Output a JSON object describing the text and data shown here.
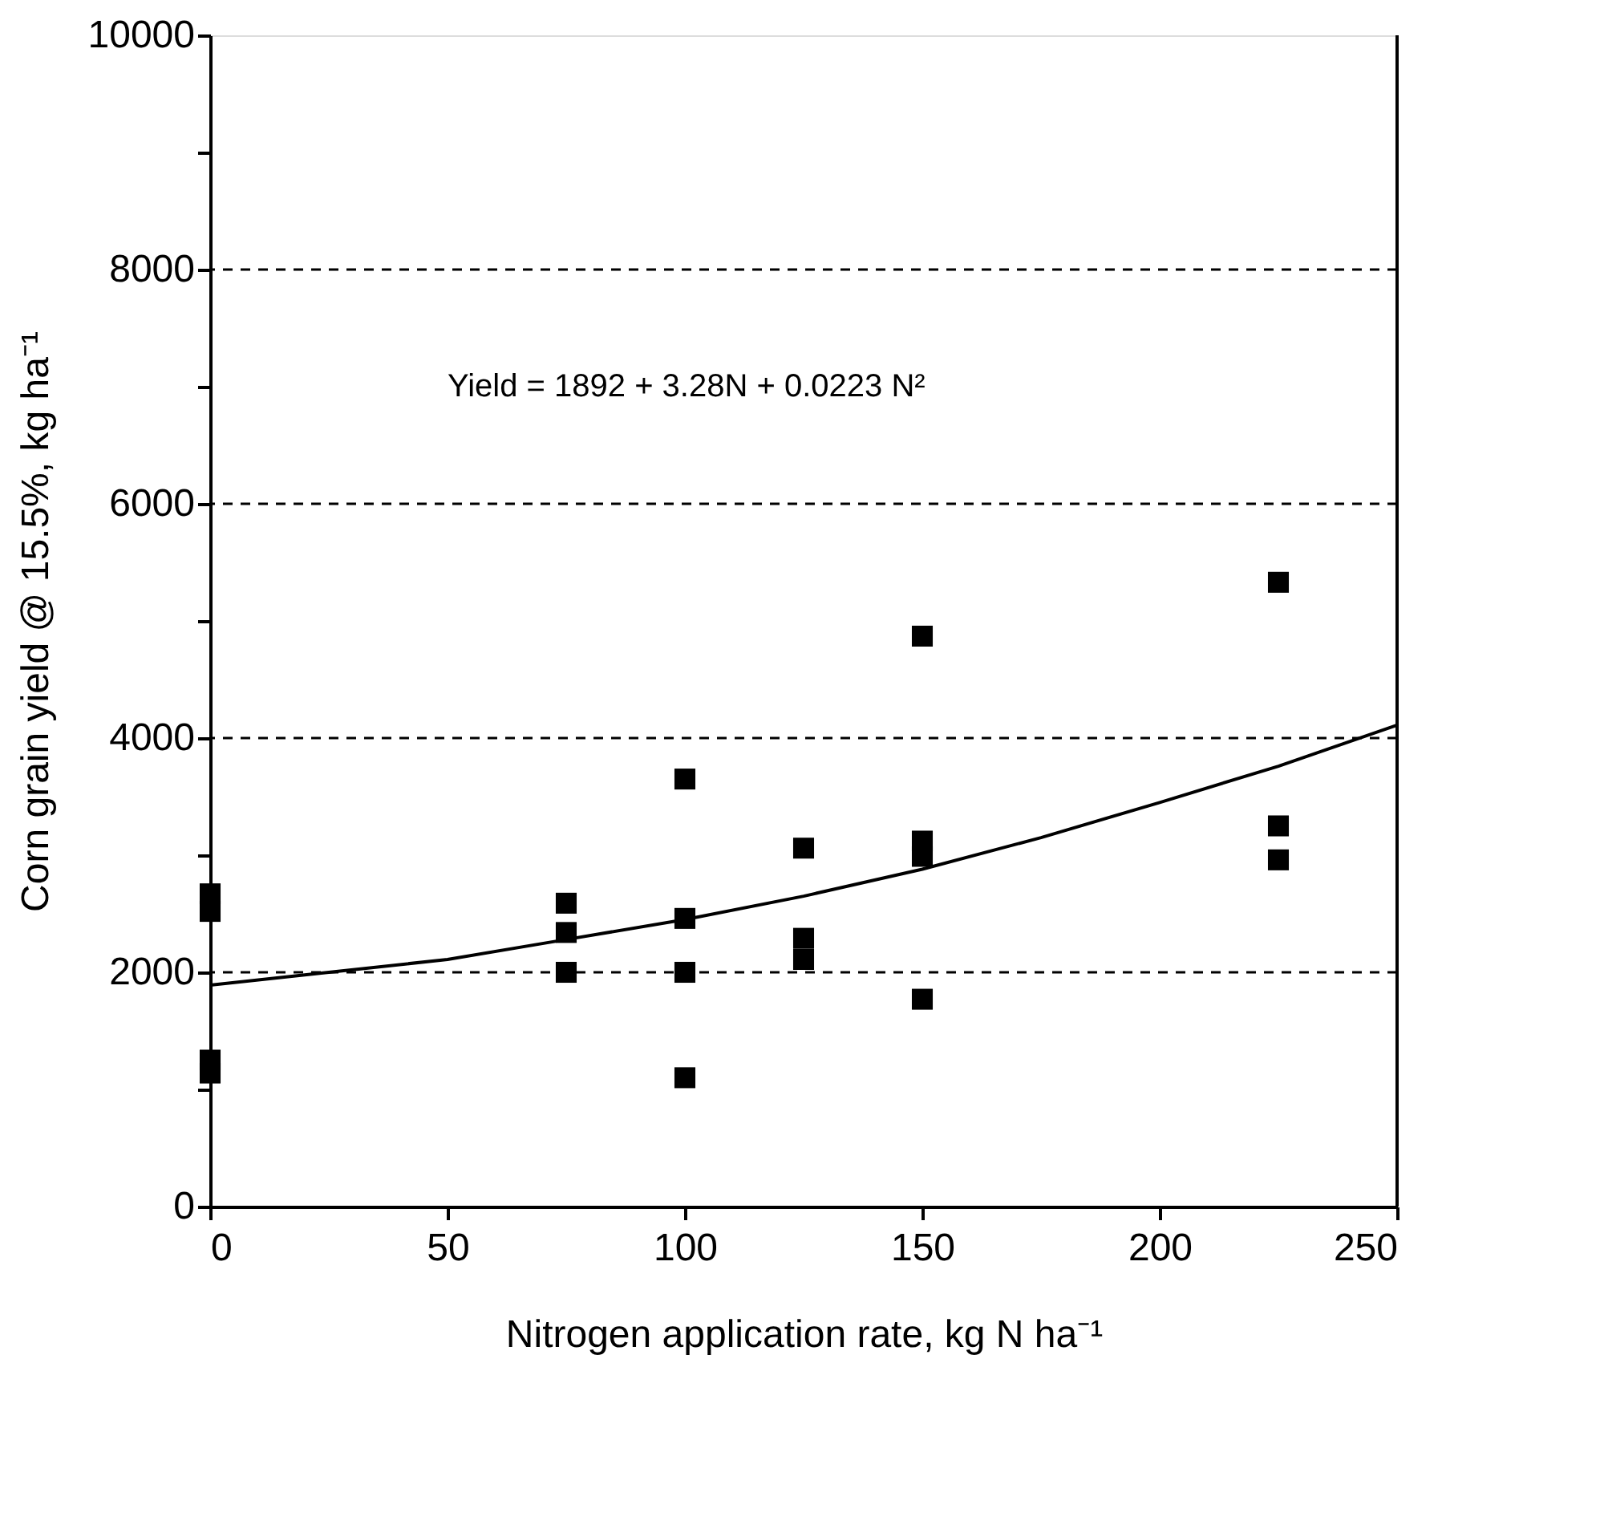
{
  "chart_data": {
    "type": "scatter",
    "xlabel": "Nitrogen application rate, kg N ha⁻¹",
    "ylabel": "Corn grain yield @ 15.5%, kg ha⁻¹",
    "annotations": [
      "Yield = 1892 + 3.28N + 0.0223 N²"
    ],
    "series": [
      {
        "marker": "square",
        "color": "#000000",
        "x": [
          0,
          0,
          0,
          0,
          75,
          75,
          75,
          100,
          100,
          100,
          100,
          125,
          125,
          125,
          150,
          150,
          150,
          150,
          225,
          225,
          225
        ],
        "values": [
          2670,
          2520,
          1250,
          1140,
          2590,
          2340,
          2000,
          3650,
          2460,
          2000,
          1100,
          3060,
          2290,
          2110,
          4870,
          3120,
          2990,
          1770,
          5330,
          3250,
          2960
        ]
      },
      {
        "type": "line",
        "line_style": "solid",
        "color": "#000000",
        "x": [
          0,
          25,
          50,
          75,
          100,
          125,
          150,
          175,
          200,
          225,
          250
        ],
        "values": [
          1890,
          2000,
          2110,
          2280,
          2450,
          2650,
          2880,
          3150,
          3450,
          3760,
          4110
        ]
      }
    ],
    "xlim": [
      0,
      250
    ],
    "xticks": [
      0,
      50,
      100,
      150,
      200,
      250
    ],
    "ylim": [
      0,
      10000
    ],
    "yticks": [
      0,
      {
        "value": 1000,
        "label": null
      },
      2000,
      {
        "value": 3000,
        "label": null
      },
      4000,
      {
        "value": 5000,
        "label": null
      },
      6000,
      {
        "value": 7000,
        "label": null
      },
      8000,
      {
        "value": 9000,
        "label": null
      },
      10000
    ],
    "grid": "y"
  }
}
